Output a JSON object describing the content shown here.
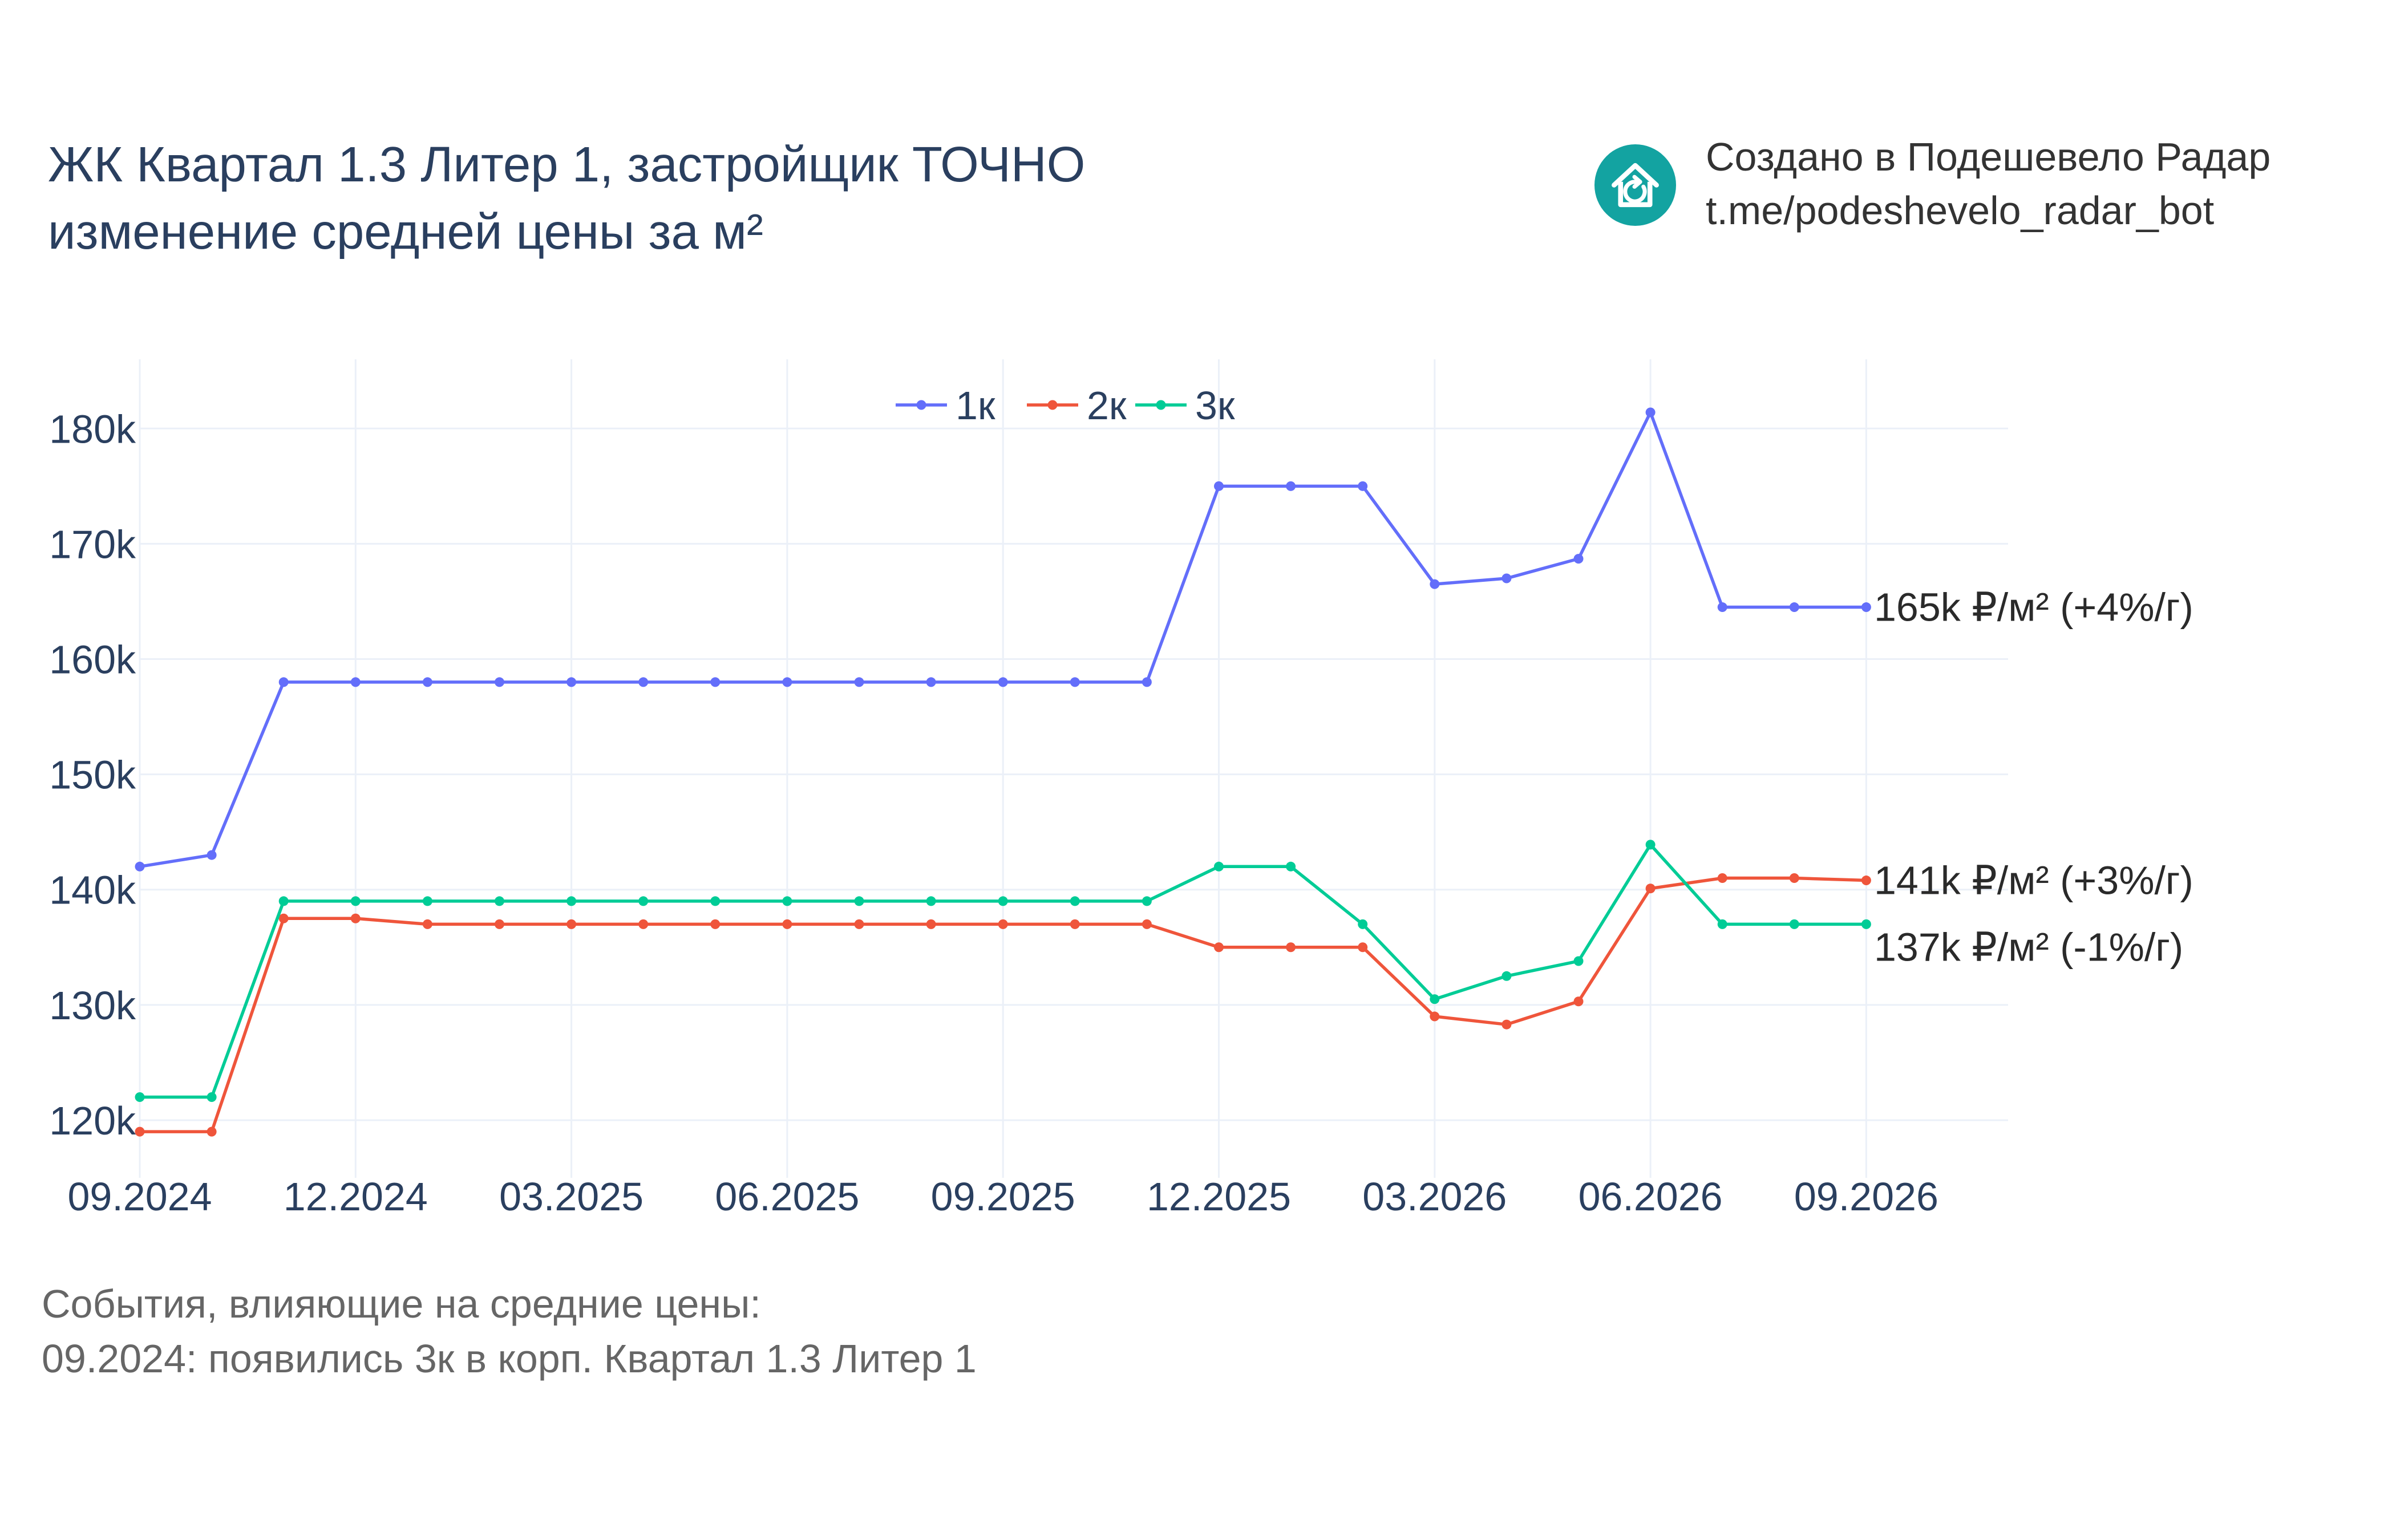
{
  "title": {
    "line1": "ЖК Квартал 1.3 Литер 1, застройщик ТОЧНО",
    "line2": "изменение средней цены за м²"
  },
  "brand": {
    "line1": "Создано в Подешевело Радар",
    "line2": "t.me/podeshevelo_radar_bot",
    "logo_icon": "house-refresh-icon",
    "logo_color": "#13a3a1"
  },
  "events": {
    "heading": "События, влияющие на средние цены:",
    "items": [
      "09.2024: появились 3к в корп. Квартал 1.3 Литер 1"
    ]
  },
  "chart_data": {
    "type": "line",
    "x": [
      "09.2024",
      "10.2024",
      "11.2024",
      "12.2024",
      "01.2025",
      "02.2025",
      "03.2025",
      "04.2025",
      "05.2025",
      "06.2025",
      "07.2025",
      "08.2025",
      "09.2025",
      "10.2025",
      "11.2025",
      "12.2025",
      "01.2026",
      "02.2026",
      "03.2026",
      "04.2026",
      "05.2026",
      "06.2026",
      "07.2026",
      "08.2026",
      "09.2026"
    ],
    "x_tick_labels": [
      "09.2024",
      "12.2024",
      "03.2025",
      "06.2025",
      "09.2025",
      "12.2025",
      "03.2026",
      "06.2026",
      "09.2026"
    ],
    "y_tick_values": [
      120000,
      130000,
      140000,
      150000,
      160000,
      170000,
      180000
    ],
    "y_tick_labels": [
      "120k",
      "130k",
      "140k",
      "150k",
      "160k",
      "170k",
      "180k"
    ],
    "ylim": [
      115000,
      186000
    ],
    "grid": true,
    "legend_position": "top-center",
    "series": [
      {
        "name": "1к",
        "color": "#636efa",
        "values": [
          142000,
          143000,
          158000,
          158000,
          158000,
          158000,
          158000,
          158000,
          158000,
          158000,
          158000,
          158000,
          158000,
          158000,
          158000,
          175000,
          175000,
          175000,
          166500,
          167000,
          168700,
          181400,
          164500,
          164500,
          164500
        ],
        "end_label": "165k ₽/м² (+4%/г)"
      },
      {
        "name": "2к",
        "color": "#ef553b",
        "values": [
          119000,
          119000,
          137500,
          137500,
          137000,
          137000,
          137000,
          137000,
          137000,
          137000,
          137000,
          137000,
          137000,
          137000,
          137000,
          135000,
          135000,
          135000,
          129000,
          128300,
          130300,
          140100,
          141000,
          141000,
          140800
        ],
        "end_label": "141k ₽/м² (+3%/г)"
      },
      {
        "name": "3к",
        "color": "#00cc96",
        "values": [
          122000,
          122000,
          139000,
          139000,
          139000,
          139000,
          139000,
          139000,
          139000,
          139000,
          139000,
          139000,
          139000,
          139000,
          139000,
          142000,
          142000,
          137000,
          130500,
          132500,
          133800,
          143900,
          137000,
          137000,
          137000
        ],
        "end_label": "137k ₽/м² (-1%/г)"
      }
    ]
  }
}
